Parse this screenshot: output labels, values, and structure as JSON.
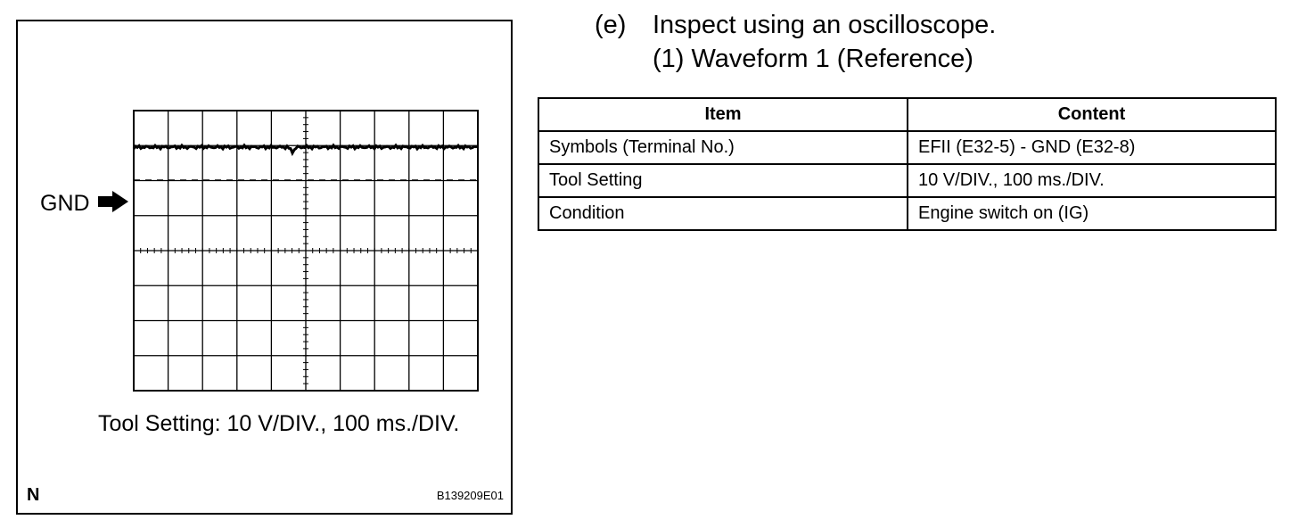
{
  "figure": {
    "marker_label": "GND",
    "caption": "Tool Setting: 10 V/DIV., 100 ms./DIV.",
    "corner_mark": "N",
    "figure_code": "B139209E01"
  },
  "steps": {
    "step_letter": "(e)",
    "step_text": "Inspect using an oscilloscope.",
    "sub_step": "(1) Waveform 1 (Reference)"
  },
  "table": {
    "headers": [
      "Item",
      "Content"
    ],
    "rows": [
      [
        "Symbols (Terminal No.)",
        "EFII (E32-5) - GND (E32-8)"
      ],
      [
        "Tool Setting",
        "10 V/DIV., 100 ms./DIV."
      ],
      [
        "Condition",
        "Engine switch on (IG)"
      ]
    ]
  }
}
